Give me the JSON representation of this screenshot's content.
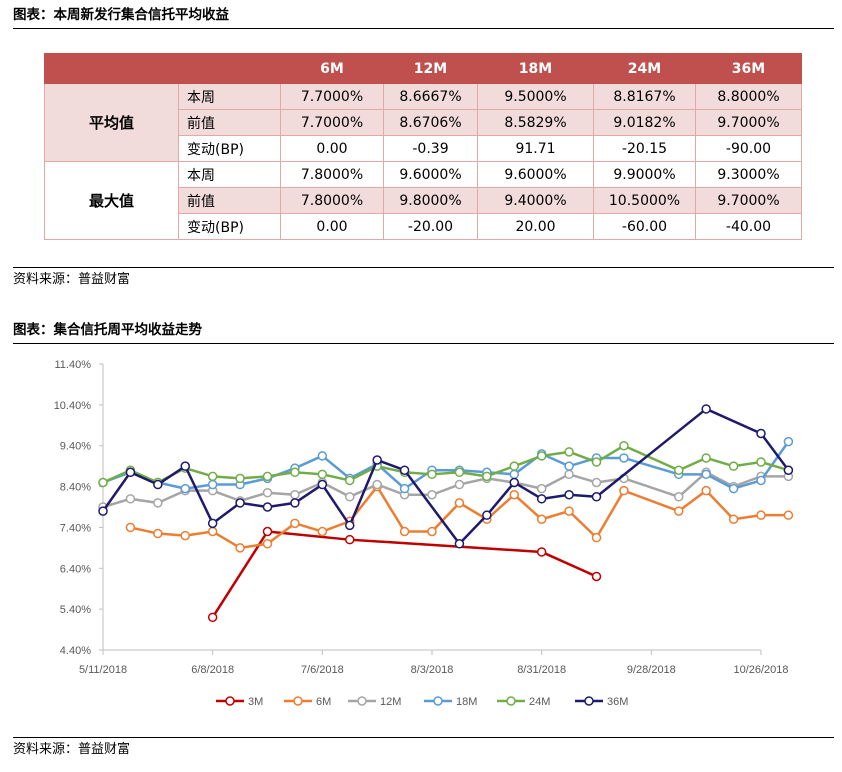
{
  "table_section": {
    "title": "图表：本周新发行集合信托平均收益",
    "source": "资料来源：普益财富",
    "columns": [
      "6M",
      "12M",
      "18M",
      "24M",
      "36M"
    ],
    "groups": [
      {
        "name": "平均值",
        "rows": [
          {
            "label": "本周",
            "values": [
              "7.7000%",
              "8.6667%",
              "9.5000%",
              "8.8167%",
              "8.8000%"
            ]
          },
          {
            "label": "前值",
            "values": [
              "7.7000%",
              "8.6706%",
              "8.5829%",
              "9.0182%",
              "9.7000%"
            ]
          },
          {
            "label": "变动(BP)",
            "values": [
              "0.00",
              "-0.39",
              "91.71",
              "-20.15",
              "-90.00"
            ]
          }
        ]
      },
      {
        "name": "最大值",
        "rows": [
          {
            "label": "本周",
            "values": [
              "7.8000%",
              "9.6000%",
              "9.6000%",
              "9.9000%",
              "9.3000%"
            ]
          },
          {
            "label": "前值",
            "values": [
              "7.8000%",
              "9.8000%",
              "9.4000%",
              "10.5000%",
              "9.7000%"
            ]
          },
          {
            "label": "变动(BP)",
            "values": [
              "0.00",
              "-20.00",
              "20.00",
              "-60.00",
              "-40.00"
            ]
          }
        ]
      }
    ]
  },
  "chart_section": {
    "title": "图表：集合信托周平均收益走势",
    "source": "资料来源：普益财富"
  },
  "chart_data": {
    "type": "line",
    "title": "",
    "xlabel": "",
    "ylabel": "",
    "x_unit": "week",
    "x_tick_labels": [
      "5/11/2018",
      "6/8/2018",
      "7/6/2018",
      "8/3/2018",
      "8/31/2018",
      "9/28/2018",
      "10/26/2018"
    ],
    "y_tick_labels": [
      "4.40%",
      "5.40%",
      "6.40%",
      "7.40%",
      "8.40%",
      "9.40%",
      "10.40%",
      "11.40%"
    ],
    "ylim": [
      4.4,
      11.4
    ],
    "legend_position": "bottom",
    "series": [
      {
        "name": "3M",
        "color": "#c00000",
        "points": [
          [
            "6/8/2018",
            5.2
          ],
          [
            "6/22/2018",
            7.3
          ],
          [
            "7/13/2018",
            7.1
          ],
          [
            "8/31/2018",
            6.8
          ],
          [
            "9/14/2018",
            6.2
          ]
        ]
      },
      {
        "name": "6M",
        "color": "#ed7d31",
        "points": [
          [
            "5/18/2018",
            7.4
          ],
          [
            "5/25/2018",
            7.25
          ],
          [
            "6/1/2018",
            7.2
          ],
          [
            "6/8/2018",
            7.3
          ],
          [
            "6/15/2018",
            6.9
          ],
          [
            "6/22/2018",
            7.0
          ],
          [
            "6/29/2018",
            7.5
          ],
          [
            "7/6/2018",
            7.3
          ],
          [
            "7/13/2018",
            7.55
          ],
          [
            "7/20/2018",
            8.4
          ],
          [
            "7/27/2018",
            7.3
          ],
          [
            "8/3/2018",
            7.3
          ],
          [
            "8/10/2018",
            8.0
          ],
          [
            "8/17/2018",
            7.6
          ],
          [
            "8/24/2018",
            8.2
          ],
          [
            "8/31/2018",
            7.6
          ],
          [
            "9/7/2018",
            7.8
          ],
          [
            "9/14/2018",
            7.15
          ],
          [
            "9/21/2018",
            8.3
          ],
          [
            "10/5/2018",
            7.8
          ],
          [
            "10/12/2018",
            8.3
          ],
          [
            "10/19/2018",
            7.6
          ],
          [
            "10/26/2018",
            7.7
          ],
          [
            "11/2/2018",
            7.7
          ]
        ]
      },
      {
        "name": "12M",
        "color": "#a5a5a5",
        "points": [
          [
            "5/11/2018",
            7.9
          ],
          [
            "5/18/2018",
            8.1
          ],
          [
            "5/25/2018",
            8.0
          ],
          [
            "6/1/2018",
            8.3
          ],
          [
            "6/8/2018",
            8.3
          ],
          [
            "6/15/2018",
            8.05
          ],
          [
            "6/22/2018",
            8.25
          ],
          [
            "6/29/2018",
            8.2
          ],
          [
            "7/6/2018",
            8.5
          ],
          [
            "7/13/2018",
            8.15
          ],
          [
            "7/20/2018",
            8.45
          ],
          [
            "7/27/2018",
            8.2
          ],
          [
            "8/3/2018",
            8.2
          ],
          [
            "8/10/2018",
            8.45
          ],
          [
            "8/17/2018",
            8.6
          ],
          [
            "8/24/2018",
            8.5
          ],
          [
            "8/31/2018",
            8.35
          ],
          [
            "9/7/2018",
            8.7
          ],
          [
            "9/14/2018",
            8.5
          ],
          [
            "9/21/2018",
            8.6
          ],
          [
            "10/5/2018",
            8.15
          ],
          [
            "10/12/2018",
            8.75
          ],
          [
            "10/19/2018",
            8.4
          ],
          [
            "10/26/2018",
            8.65
          ],
          [
            "11/2/2018",
            8.65
          ]
        ]
      },
      {
        "name": "18M",
        "color": "#5b9bd5",
        "points": [
          [
            "5/11/2018",
            8.5
          ],
          [
            "5/18/2018",
            8.75
          ],
          [
            "5/25/2018",
            8.5
          ],
          [
            "6/1/2018",
            8.35
          ],
          [
            "6/8/2018",
            8.45
          ],
          [
            "6/15/2018",
            8.45
          ],
          [
            "6/22/2018",
            8.6
          ],
          [
            "6/29/2018",
            8.85
          ],
          [
            "7/6/2018",
            9.15
          ],
          [
            "7/13/2018",
            8.6
          ],
          [
            "7/20/2018",
            8.95
          ],
          [
            "7/27/2018",
            8.35
          ],
          [
            "8/3/2018",
            8.8
          ],
          [
            "8/10/2018",
            8.8
          ],
          [
            "8/17/2018",
            8.75
          ],
          [
            "8/24/2018",
            8.7
          ],
          [
            "8/31/2018",
            9.2
          ],
          [
            "9/7/2018",
            8.9
          ],
          [
            "9/14/2018",
            9.1
          ],
          [
            "9/21/2018",
            9.1
          ],
          [
            "10/5/2018",
            8.7
          ],
          [
            "10/12/2018",
            8.7
          ],
          [
            "10/19/2018",
            8.35
          ],
          [
            "10/26/2018",
            8.55
          ],
          [
            "11/2/2018",
            9.5
          ]
        ]
      },
      {
        "name": "24M",
        "color": "#70ad47",
        "points": [
          [
            "5/11/2018",
            8.5
          ],
          [
            "5/18/2018",
            8.8
          ],
          [
            "5/25/2018",
            8.5
          ],
          [
            "6/1/2018",
            8.85
          ],
          [
            "6/8/2018",
            8.65
          ],
          [
            "6/15/2018",
            8.6
          ],
          [
            "6/22/2018",
            8.65
          ],
          [
            "6/29/2018",
            8.75
          ],
          [
            "7/6/2018",
            8.7
          ],
          [
            "7/13/2018",
            8.55
          ],
          [
            "7/20/2018",
            8.9
          ],
          [
            "7/27/2018",
            8.75
          ],
          [
            "8/3/2018",
            8.7
          ],
          [
            "8/10/2018",
            8.75
          ],
          [
            "8/17/2018",
            8.65
          ],
          [
            "8/24/2018",
            8.9
          ],
          [
            "8/31/2018",
            9.15
          ],
          [
            "9/7/2018",
            9.25
          ],
          [
            "9/14/2018",
            9.0
          ],
          [
            "9/21/2018",
            9.4
          ],
          [
            "10/5/2018",
            8.8
          ],
          [
            "10/12/2018",
            9.1
          ],
          [
            "10/19/2018",
            8.9
          ],
          [
            "10/26/2018",
            9.0
          ],
          [
            "11/2/2018",
            8.8
          ]
        ]
      },
      {
        "name": "36M",
        "color": "#1f1a6b",
        "points": [
          [
            "5/11/2018",
            7.8
          ],
          [
            "5/18/2018",
            8.75
          ],
          [
            "5/25/2018",
            8.45
          ],
          [
            "6/1/2018",
            8.9
          ],
          [
            "6/8/2018",
            7.5
          ],
          [
            "6/15/2018",
            8.0
          ],
          [
            "6/22/2018",
            7.9
          ],
          [
            "6/29/2018",
            8.0
          ],
          [
            "7/6/2018",
            8.45
          ],
          [
            "7/13/2018",
            7.45
          ],
          [
            "7/20/2018",
            9.05
          ],
          [
            "7/27/2018",
            8.8
          ],
          [
            "8/10/2018",
            7.0
          ],
          [
            "8/17/2018",
            7.7
          ],
          [
            "8/24/2018",
            8.5
          ],
          [
            "8/31/2018",
            8.1
          ],
          [
            "9/7/2018",
            8.2
          ],
          [
            "9/14/2018",
            8.15
          ],
          [
            "10/12/2018",
            10.3
          ],
          [
            "10/26/2018",
            9.7
          ],
          [
            "11/2/2018",
            8.8
          ]
        ]
      }
    ]
  }
}
